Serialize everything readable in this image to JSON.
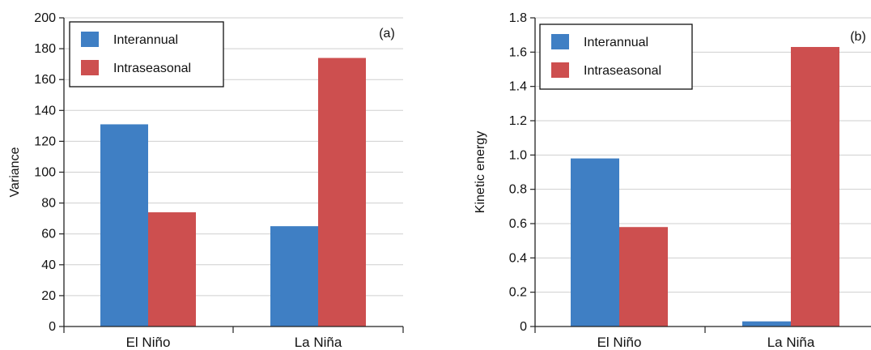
{
  "chart_data": [
    {
      "type": "bar",
      "panel_label": "(a)",
      "categories": [
        "El Niño",
        "La Niña"
      ],
      "series": [
        {
          "name": "Interannual",
          "color": "#3f7fc4",
          "values": [
            131,
            65
          ]
        },
        {
          "name": "Intraseasonal",
          "color": "#cd4f4f",
          "values": [
            74,
            174
          ]
        }
      ],
      "ylabel": "Variance",
      "xlabel": "",
      "ylim": [
        0,
        200
      ],
      "yticks": [
        0,
        20,
        40,
        60,
        80,
        100,
        120,
        140,
        160,
        180,
        200
      ],
      "ytick_labels": [
        "0",
        "20",
        "40",
        "60",
        "80",
        "100",
        "120",
        "140",
        "160",
        "180",
        "200"
      ],
      "grid": true,
      "legend_position": "top-left"
    },
    {
      "type": "bar",
      "panel_label": "(b)",
      "categories": [
        "El Niño",
        "La Niña"
      ],
      "series": [
        {
          "name": "Interannual",
          "color": "#3f7fc4",
          "values": [
            0.98,
            0.03
          ]
        },
        {
          "name": "Intraseasonal",
          "color": "#cd4f4f",
          "values": [
            0.58,
            1.63
          ]
        }
      ],
      "ylabel": "Kinetic energy",
      "xlabel": "",
      "ylim": [
        0,
        1.8
      ],
      "yticks": [
        0,
        0.2,
        0.4,
        0.6,
        0.8,
        1.0,
        1.2,
        1.4,
        1.6,
        1.8
      ],
      "ytick_labels": [
        "0",
        "0.2",
        "0.4",
        "0.6",
        "0.8",
        "1.0",
        "1.2",
        "1.4",
        "1.6",
        "1.8"
      ],
      "grid": true,
      "legend_position": "top-left"
    }
  ]
}
